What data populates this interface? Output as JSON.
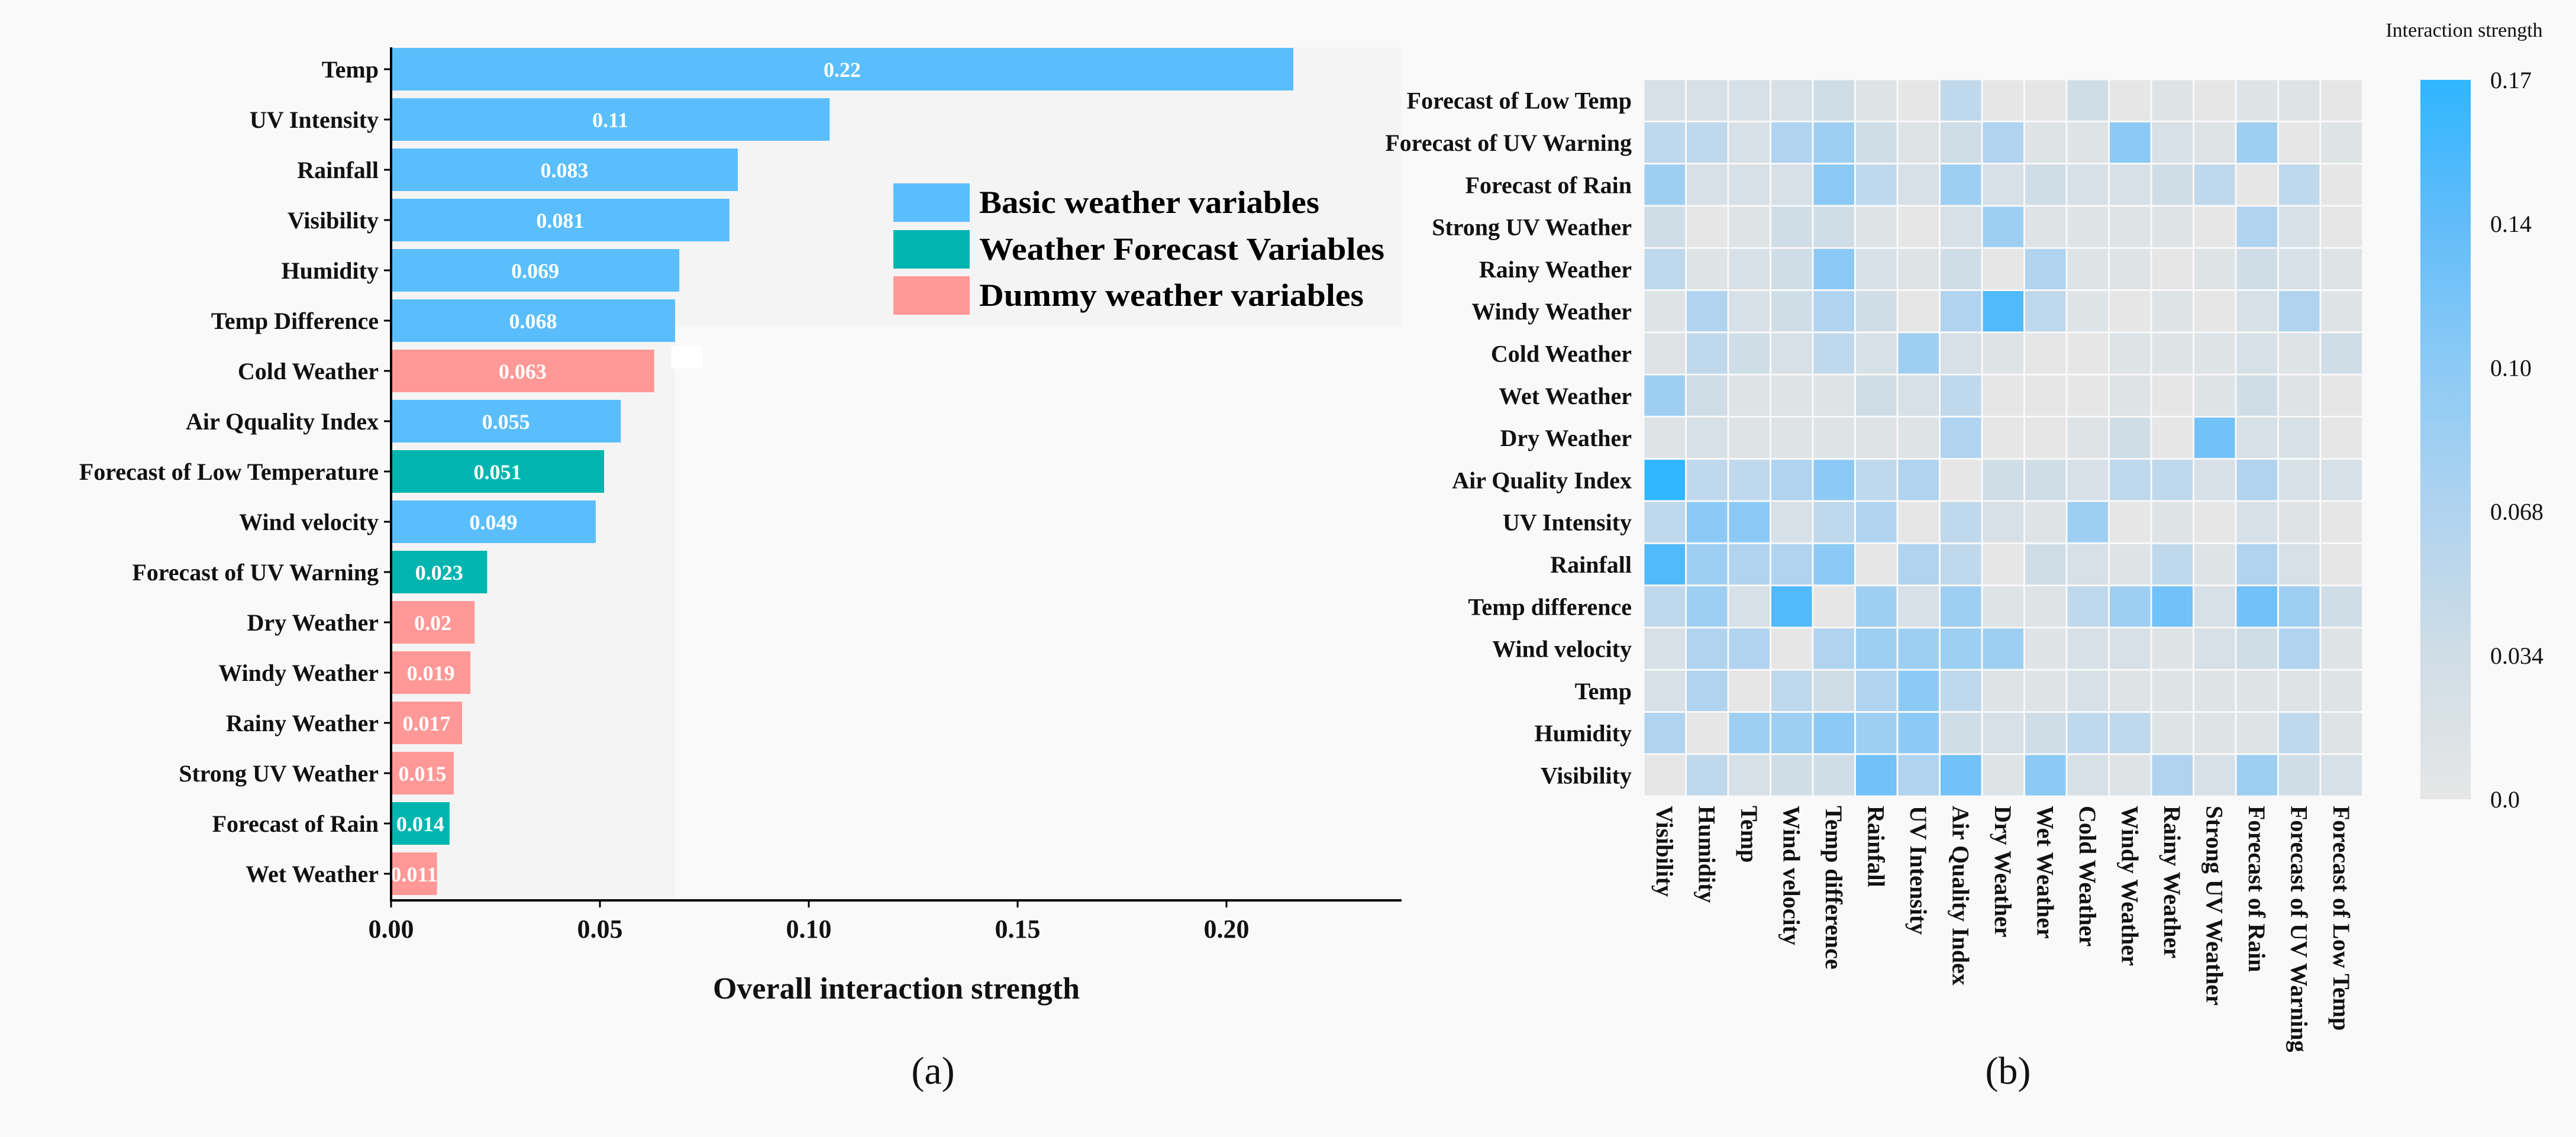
{
  "chart_data": [
    {
      "type": "bar",
      "orientation": "horizontal",
      "panel_label": "(a)",
      "xlabel": "Overall interaction strength",
      "ylabel": "",
      "xlim": [
        0,
        0.24
      ],
      "xticks": [
        "0.00",
        "0.05",
        "0.10",
        "0.15",
        "0.20"
      ],
      "xtick_values": [
        0,
        0.05,
        0.1,
        0.15,
        0.2
      ],
      "legend_position": "top-right",
      "legend": [
        {
          "name": "Basic weather variables",
          "color": "#5bbefc"
        },
        {
          "name": "Weather Forecast Variables",
          "color": "#00b5b0"
        },
        {
          "name": "Dummy weather variables",
          "color": "#ff9896"
        }
      ],
      "categories": [
        "Temp",
        "UV Intensity",
        "Rainfall",
        "Visibility",
        "Humidity",
        "Temp Difference",
        "Cold Weather",
        "Air Qquality Index",
        "Forecast of Low Temperature",
        "Wind velocity",
        "Forecast of UV Warning",
        "Dry Weather",
        "Windy Weather",
        "Rainy Weather",
        "Strong UV Weather",
        "Forecast of Rain",
        "Wet Weather"
      ],
      "values": [
        0.216,
        0.105,
        0.083,
        0.081,
        0.069,
        0.068,
        0.063,
        0.055,
        0.051,
        0.049,
        0.023,
        0.02,
        0.019,
        0.017,
        0.015,
        0.014,
        0.011
      ],
      "value_labels": [
        "0.22",
        "0.11",
        "0.083",
        "0.081",
        "0.069",
        "0.068",
        "0.063",
        "0.055",
        "0.051",
        "0.049",
        "0.023",
        "0.02",
        "0.019",
        "0.017",
        "0.015",
        "0.014",
        "0.011"
      ],
      "groups": [
        0,
        0,
        0,
        0,
        0,
        0,
        2,
        0,
        1,
        0,
        1,
        2,
        2,
        2,
        2,
        1,
        2
      ]
    },
    {
      "type": "heatmap",
      "panel_label": "(b)",
      "colorbar_title": "Interaction strength",
      "colorbar_ticks": [
        "0.17",
        "0.14",
        "0.10",
        "0.068",
        "0.034",
        "0.0"
      ],
      "colorbar_tick_values": [
        0.17,
        0.14,
        0.1,
        0.068,
        0.034,
        0.0
      ],
      "color_low": "#e6e6e6",
      "color_high": "#2fb6ff",
      "rows": [
        "Forecast of Low Temp",
        "Forecast of UV Warning",
        "Forecast of Rain",
        "Strong UV Weather",
        "Rainy Weather",
        "Windy Weather",
        "Cold Weather",
        "Wet Weather",
        "Dry Weather",
        "Air Quality Index",
        "UV Intensity",
        "Rainfall",
        "Temp difference",
        "Wind velocity",
        "Temp",
        "Humidity",
        "Visibility"
      ],
      "columns": [
        "Visibility",
        "Humidity",
        "Temp",
        "Wind velocity",
        "Temp difference",
        "Rainfall",
        "UV Intensity",
        "Air Quality Index",
        "Dry Weather",
        "Wet Weather",
        "Cold Weather",
        "Windy Weather",
        "Rainy Weather",
        "Strong UV Weather",
        "Forecast of Rain",
        "Forecast of UV Warning",
        "Forecast of Low Temp"
      ],
      "values": [
        [
          0.024,
          0.024,
          0.024,
          0.024,
          0.034,
          0.012,
          0,
          0.052,
          0,
          0,
          0.034,
          0,
          0.012,
          0,
          0.012,
          0.012,
          0
        ],
        [
          0.052,
          0.052,
          0.024,
          0.068,
          0.084,
          0.034,
          0.012,
          0.034,
          0.068,
          0.012,
          0.012,
          0.1,
          0.024,
          0.012,
          0.084,
          0,
          0.012
        ],
        [
          0.084,
          0.024,
          0.024,
          0.024,
          0.1,
          0.052,
          0.024,
          0.084,
          0.024,
          0.034,
          0.024,
          0.024,
          0.034,
          0.052,
          0,
          0.052,
          0
        ],
        [
          0.034,
          0,
          0.012,
          0.034,
          0.034,
          0.012,
          0,
          0.024,
          0.084,
          0.012,
          0.012,
          0.012,
          0.012,
          0,
          0.068,
          0.024,
          0
        ],
        [
          0.052,
          0.012,
          0.024,
          0.034,
          0.1,
          0.024,
          0.012,
          0.034,
          0,
          0.068,
          0.012,
          0.012,
          0,
          0.012,
          0.034,
          0.024,
          0.012
        ],
        [
          0.012,
          0.068,
          0.024,
          0.034,
          0.068,
          0.034,
          0,
          0.068,
          0.15,
          0.052,
          0.012,
          0,
          0.012,
          0,
          0.024,
          0.068,
          0.012
        ],
        [
          0.012,
          0.052,
          0.034,
          0.024,
          0.052,
          0.024,
          0.084,
          0.024,
          0.012,
          0,
          0,
          0.012,
          0.012,
          0.012,
          0.024,
          0.012,
          0.034
        ],
        [
          0.084,
          0.034,
          0.012,
          0.012,
          0.012,
          0.034,
          0.024,
          0.052,
          0,
          0,
          0,
          0.012,
          0,
          0.012,
          0.034,
          0.012,
          0
        ],
        [
          0.012,
          0.024,
          0.012,
          0.012,
          0.012,
          0.012,
          0.012,
          0.068,
          0,
          0,
          0.012,
          0.034,
          0,
          0.125,
          0.024,
          0.024,
          0
        ],
        [
          0.17,
          0.052,
          0.052,
          0.068,
          0.1,
          0.052,
          0.068,
          0,
          0.034,
          0.034,
          0.024,
          0.052,
          0.052,
          0.024,
          0.068,
          0.024,
          0.024
        ],
        [
          0.052,
          0.1,
          0.1,
          0.024,
          0.052,
          0.068,
          0,
          0.052,
          0.024,
          0.012,
          0.084,
          0,
          0.012,
          0,
          0.024,
          0.012,
          0
        ],
        [
          0.15,
          0.084,
          0.068,
          0.068,
          0.1,
          0,
          0.068,
          0.052,
          0,
          0.034,
          0.024,
          0.012,
          0.052,
          0.012,
          0.068,
          0.024,
          0
        ],
        [
          0.052,
          0.084,
          0.024,
          0.15,
          0,
          0.084,
          0.024,
          0.084,
          0.012,
          0.012,
          0.052,
          0.084,
          0.125,
          0.024,
          0.125,
          0.084,
          0.034
        ],
        [
          0.024,
          0.068,
          0.068,
          0,
          0.068,
          0.084,
          0.084,
          0.084,
          0.084,
          0.012,
          0.024,
          0.024,
          0.012,
          0.024,
          0.034,
          0.068,
          0.012
        ],
        [
          0.024,
          0.068,
          0,
          0.052,
          0.034,
          0.068,
          0.1,
          0.052,
          0.012,
          0.012,
          0.024,
          0.012,
          0.012,
          0.012,
          0.012,
          0.012,
          0.012
        ],
        [
          0.068,
          0,
          0.084,
          0.084,
          0.1,
          0.084,
          0.1,
          0.034,
          0.024,
          0.034,
          0.052,
          0.052,
          0.012,
          0.012,
          0.012,
          0.052,
          0.012
        ],
        [
          0,
          0.052,
          0.024,
          0.034,
          0.034,
          0.125,
          0.068,
          0.125,
          0.012,
          0.1,
          0.024,
          0.012,
          0.068,
          0.024,
          0.084,
          0.034,
          0.024
        ]
      ]
    }
  ]
}
